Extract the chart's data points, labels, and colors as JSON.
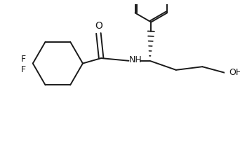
{
  "bg_color": "#ffffff",
  "line_color": "#1a1a1a",
  "line_width": 1.4,
  "fig_width": 3.42,
  "fig_height": 2.28,
  "dpi": 100,
  "xlim": [
    0,
    342
  ],
  "ylim": [
    0,
    228
  ]
}
